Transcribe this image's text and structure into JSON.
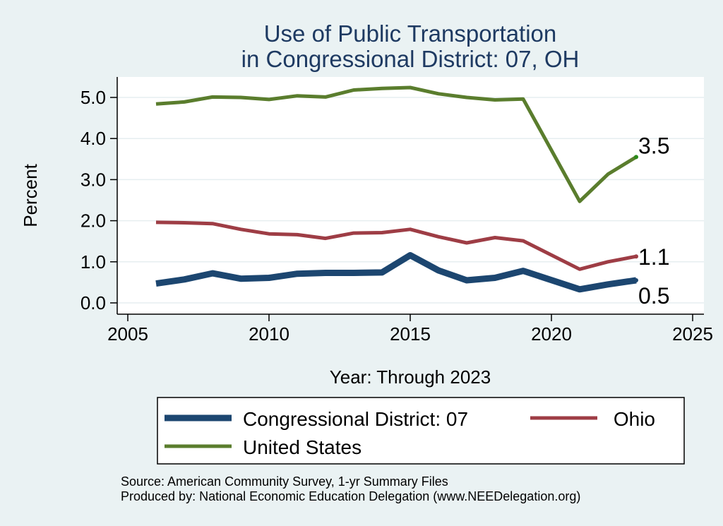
{
  "chart_data": {
    "type": "line",
    "title": "Use of Public Transportation",
    "subtitle": "in Congressional District: 07, OH",
    "xlabel": "Year: Through 2023",
    "ylabel": "Percent",
    "xlim": [
      2005,
      2025
    ],
    "ylim": [
      0,
      5.2
    ],
    "xticks": [
      2005,
      2010,
      2015,
      2020,
      2025
    ],
    "yticks": [
      0,
      1,
      2,
      3,
      4,
      5
    ],
    "ytick_labels": [
      "0.0",
      "1.0",
      "2.0",
      "3.0",
      "4.0",
      "5.0"
    ],
    "grid": true,
    "legend_position": "bottom",
    "x": [
      2006,
      2007,
      2008,
      2009,
      2010,
      2011,
      2012,
      2013,
      2014,
      2015,
      2016,
      2017,
      2018,
      2019,
      2021,
      2022,
      2023
    ],
    "series": [
      {
        "name": "Congressional District: 07",
        "color": "#1c4670",
        "values": [
          0.47,
          0.57,
          0.72,
          0.59,
          0.61,
          0.71,
          0.73,
          0.73,
          0.74,
          1.16,
          0.79,
          0.55,
          0.61,
          0.78,
          0.33,
          0.45,
          0.55
        ],
        "end_label": "0.5"
      },
      {
        "name": "Ohio",
        "color": "#9e3d45",
        "values": [
          1.96,
          1.95,
          1.93,
          1.79,
          1.68,
          1.66,
          1.57,
          1.7,
          1.71,
          1.79,
          1.61,
          1.46,
          1.59,
          1.51,
          0.82,
          1.0,
          1.13
        ],
        "end_label": "1.1"
      },
      {
        "name": "United States",
        "color": "#5a7d2d",
        "values": [
          4.84,
          4.89,
          5.01,
          5.0,
          4.95,
          5.04,
          5.01,
          5.18,
          5.22,
          5.24,
          5.09,
          5.0,
          4.94,
          4.96,
          2.47,
          3.13,
          3.55
        ],
        "end_label": "3.5"
      }
    ],
    "legend_order": [
      0,
      1,
      2
    ],
    "notes": [
      "Source: American Community Survey, 1-yr Summary Files",
      "Produced by: National Economic Education Delegation (www.NEEDelegation.org)"
    ]
  }
}
